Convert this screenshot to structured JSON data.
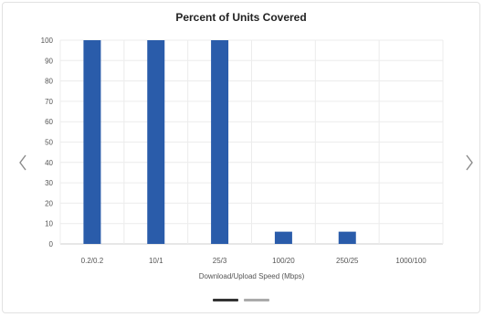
{
  "chart_data": {
    "type": "bar",
    "title": "Percent of Units Covered",
    "xlabel": "Download/Upload Speed (Mbps)",
    "ylabel": "",
    "categories": [
      "0.2/0.2",
      "10/1",
      "25/3",
      "100/20",
      "250/25",
      "1000/100"
    ],
    "values": [
      100,
      100,
      100,
      6,
      6,
      0
    ],
    "ylim": [
      0,
      100
    ],
    "yticks": [
      0,
      10,
      20,
      30,
      40,
      50,
      60,
      70,
      80,
      90,
      100
    ],
    "grid": true,
    "bar_color": "#2a5caa"
  },
  "carousel": {
    "prev_icon": "chevron-left-icon",
    "next_icon": "chevron-right-icon",
    "pages": [
      {
        "active": true,
        "color": "#333333"
      },
      {
        "active": false,
        "color": "#aaaaaa"
      }
    ]
  }
}
